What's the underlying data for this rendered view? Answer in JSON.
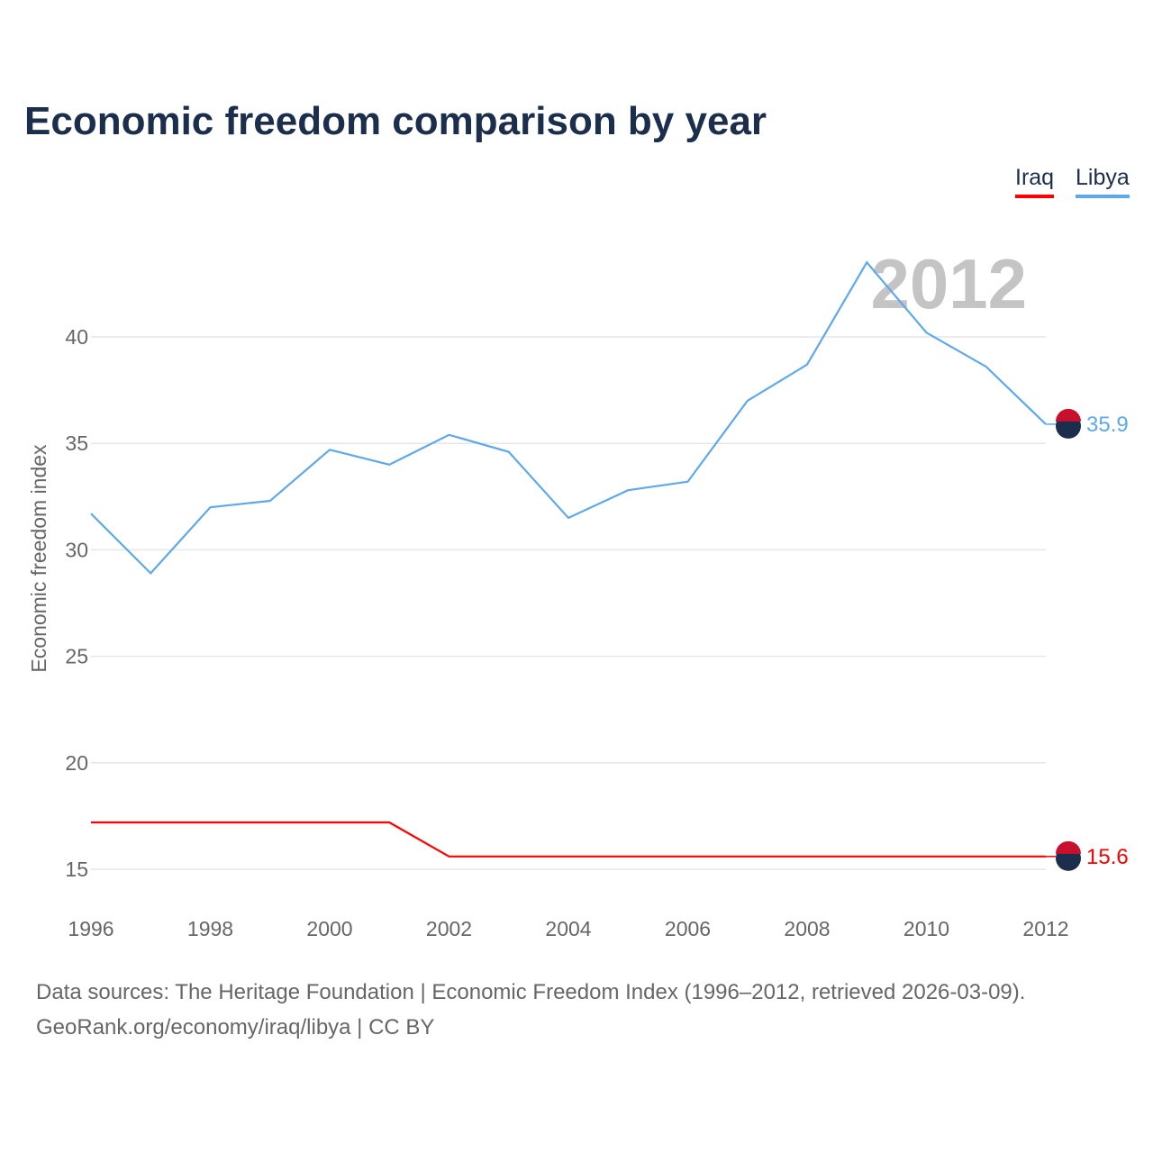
{
  "chart_data": {
    "type": "line",
    "title": "Economic freedom comparison by year",
    "xlabel": "",
    "ylabel": "Economic freedom index",
    "x": [
      1996,
      1997,
      1998,
      1999,
      2000,
      2001,
      2002,
      2003,
      2004,
      2005,
      2006,
      2007,
      2008,
      2009,
      2010,
      2011,
      2012
    ],
    "xticks": [
      "1996",
      "1998",
      "2000",
      "2002",
      "2004",
      "2006",
      "2008",
      "2010",
      "2012"
    ],
    "yticks": [
      "15",
      "20",
      "25",
      "30",
      "35",
      "40"
    ],
    "ylim": [
      13.5,
      45
    ],
    "xlim": [
      1996,
      2012
    ],
    "grid": true,
    "legend_position": "top-right",
    "year_watermark": "2012",
    "series": [
      {
        "name": "Iraq",
        "color": "#ff0000",
        "end_label": "15.6",
        "values": [
          17.2,
          17.2,
          17.2,
          17.2,
          17.2,
          17.2,
          15.6,
          15.6,
          15.6,
          15.6,
          15.6,
          15.6,
          15.6,
          15.6,
          15.6,
          15.6,
          15.6
        ]
      },
      {
        "name": "Libya",
        "color": "#5ea8ec",
        "end_label": "35.9",
        "values": [
          31.7,
          28.9,
          32.0,
          32.3,
          34.7,
          34.0,
          35.4,
          34.6,
          31.5,
          32.8,
          33.2,
          37.0,
          38.7,
          43.5,
          40.2,
          38.6,
          35.9
        ]
      }
    ]
  },
  "footer": {
    "line1": "Data sources: The Heritage Foundation | Economic Freedom Index (1996–2012, retrieved 2026-03-09).",
    "line2": "GeoRank.org/economy/iraq/libya | CC BY"
  }
}
